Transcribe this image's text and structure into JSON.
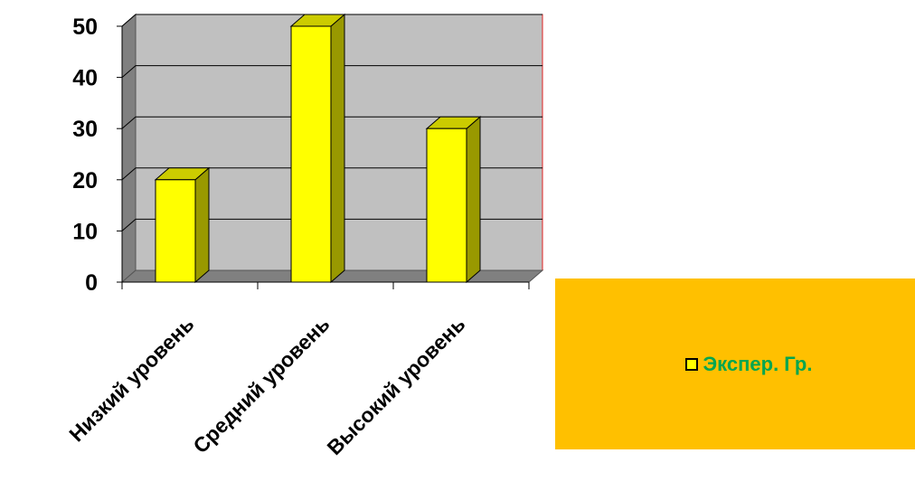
{
  "chart_data": {
    "type": "bar",
    "categories": [
      "Низкий уровень",
      "Средний уровень",
      "Высокий уровень"
    ],
    "series": [
      {
        "name": "Экспер. Гр.",
        "values": [
          20,
          50,
          30
        ]
      }
    ],
    "ylim": [
      0,
      50
    ],
    "yticks": [
      "0",
      "10",
      "20",
      "30",
      "40",
      "50"
    ],
    "grid": true,
    "legend_position": "right"
  },
  "colors": {
    "bar_front": "#FFFF00",
    "bar_side": "#999900",
    "bar_top": "#CCCC00",
    "plot_back": "#C0C0C0",
    "plot_wall": "#808080",
    "plot_floor": "#808080",
    "plot_border": "#E02020",
    "legend_bg": "#FFC000",
    "legend_text": "#00A650",
    "legend_swatch": "#FFFF00"
  }
}
